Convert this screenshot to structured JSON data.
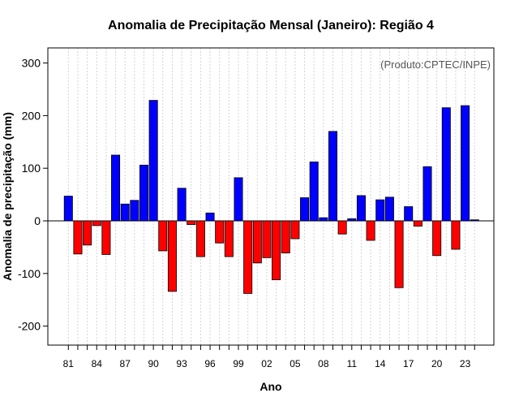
{
  "chart_data": {
    "type": "bar",
    "title": "Anomalia de Precipitação Mensal (Janeiro): Região 4",
    "xlabel": "Ano",
    "ylabel": "Anomalia de precipitação (mm)",
    "annotation": "(Produto:CPTEC/INPE)",
    "ylim": [
      -240,
      330
    ],
    "yticks": [
      -200,
      -100,
      0,
      100,
      200,
      300
    ],
    "xtick_labels": [
      "81",
      "84",
      "87",
      "90",
      "93",
      "96",
      "99",
      "02",
      "05",
      "08",
      "11",
      "14",
      "17",
      "20",
      "23"
    ],
    "positive_color": "#0000ff",
    "negative_color": "#ff0000",
    "categories": [
      "1981",
      "1982",
      "1983",
      "1984",
      "1985",
      "1986",
      "1987",
      "1988",
      "1989",
      "1990",
      "1991",
      "1992",
      "1993",
      "1994",
      "1995",
      "1996",
      "1997",
      "1998",
      "1999",
      "2000",
      "2001",
      "2002",
      "2003",
      "2004",
      "2005",
      "2006",
      "2007",
      "2008",
      "2009",
      "2010",
      "2011",
      "2012",
      "2013",
      "2014",
      "2015",
      "2016",
      "2017",
      "2018",
      "2019",
      "2020",
      "2021",
      "2022",
      "2023",
      "2024"
    ],
    "values": [
      47,
      -63,
      -46,
      -9,
      -64,
      125,
      32,
      39,
      106,
      229,
      -57,
      -134,
      62,
      -7,
      -68,
      15,
      -42,
      -68,
      82,
      -138,
      -80,
      -70,
      -112,
      -61,
      -34,
      44,
      112,
      6,
      170,
      -25,
      4,
      48,
      -37,
      40,
      45,
      -127,
      27,
      -10,
      103,
      -66,
      215,
      -54,
      219,
      2
    ]
  }
}
